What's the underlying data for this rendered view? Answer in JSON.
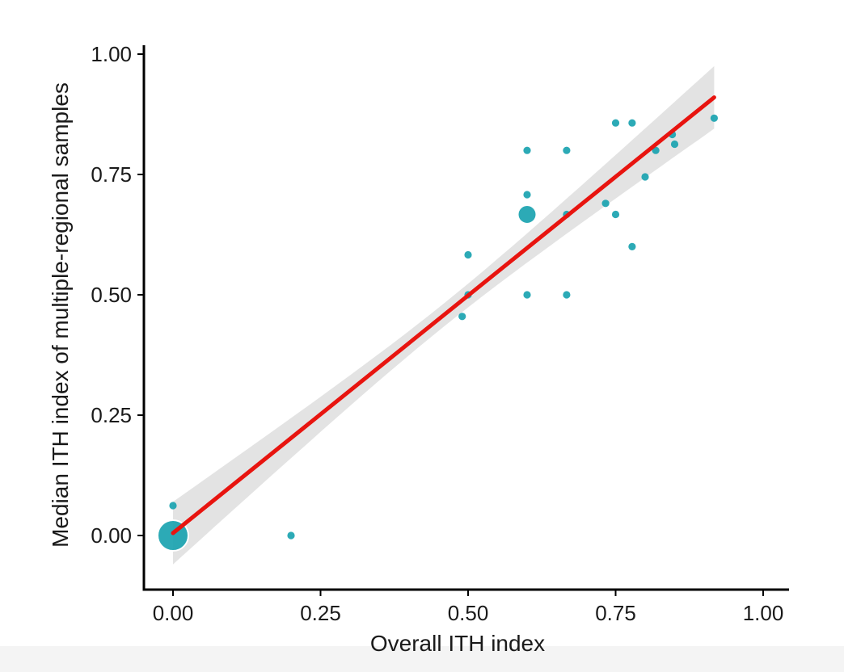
{
  "chart_data": {
    "type": "scatter",
    "title": "",
    "xlabel": "Overall ITH index",
    "ylabel": "Median ITH index of multiple-regional samples",
    "xlim": [
      -0.05,
      1.05
    ],
    "ylim": [
      -0.11,
      1.02
    ],
    "x_ticks": [
      0.0,
      0.25,
      0.5,
      0.75,
      1.0
    ],
    "x_tick_labels": [
      "0.00",
      "0.25",
      "0.50",
      "0.75",
      "1.00"
    ],
    "y_ticks": [
      0.0,
      0.25,
      0.5,
      0.75,
      1.0
    ],
    "y_tick_labels": [
      "0.00",
      "0.25",
      "0.50",
      "0.75",
      "1.00"
    ],
    "grid": false,
    "point_color": "#1aa3b0",
    "points": [
      {
        "x": 0.0,
        "y": 0.0,
        "n": 8
      },
      {
        "x": 0.0,
        "y": 0.062,
        "n": 1
      },
      {
        "x": 0.2,
        "y": 0.0,
        "n": 1
      },
      {
        "x": 0.49,
        "y": 0.455,
        "n": 1
      },
      {
        "x": 0.5,
        "y": 0.5,
        "n": 1
      },
      {
        "x": 0.5,
        "y": 0.583,
        "n": 1
      },
      {
        "x": 0.6,
        "y": 0.5,
        "n": 1
      },
      {
        "x": 0.6,
        "y": 0.667,
        "n": 4
      },
      {
        "x": 0.6,
        "y": 0.708,
        "n": 1
      },
      {
        "x": 0.6,
        "y": 0.8,
        "n": 1
      },
      {
        "x": 0.667,
        "y": 0.5,
        "n": 1
      },
      {
        "x": 0.667,
        "y": 0.667,
        "n": 1
      },
      {
        "x": 0.667,
        "y": 0.8,
        "n": 1
      },
      {
        "x": 0.733,
        "y": 0.69,
        "n": 1
      },
      {
        "x": 0.75,
        "y": 0.667,
        "n": 1
      },
      {
        "x": 0.75,
        "y": 0.857,
        "n": 1
      },
      {
        "x": 0.778,
        "y": 0.6,
        "n": 1
      },
      {
        "x": 0.778,
        "y": 0.857,
        "n": 1
      },
      {
        "x": 0.8,
        "y": 0.745,
        "n": 1
      },
      {
        "x": 0.818,
        "y": 0.8,
        "n": 1
      },
      {
        "x": 0.846,
        "y": 0.833,
        "n": 1
      },
      {
        "x": 0.85,
        "y": 0.813,
        "n": 1
      },
      {
        "x": 0.917,
        "y": 0.867,
        "n": 1
      }
    ],
    "fit": {
      "type": "linear",
      "color": "#e8140f",
      "x_range": [
        0.0,
        0.917
      ],
      "intercept": 0.005,
      "slope": 0.987,
      "ci_band_color": "#d9d9d9",
      "ci_halfwidth_at_ends": 0.065,
      "ci_halfwidth_at_center": 0.024
    }
  }
}
